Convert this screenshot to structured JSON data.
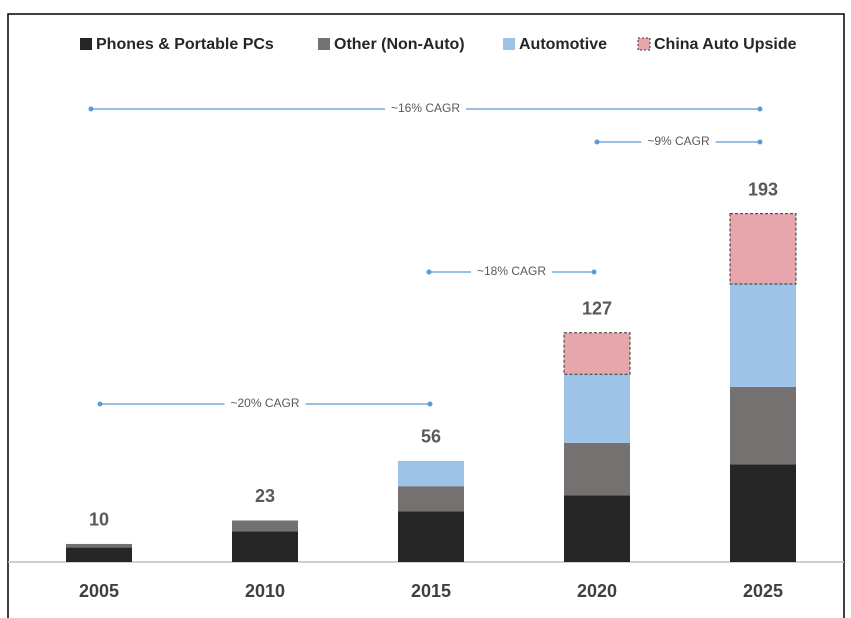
{
  "chart_data": {
    "type": "stacked-bar",
    "categories": [
      "2005",
      "2010",
      "2015",
      "2020",
      "2025"
    ],
    "series": [
      {
        "name": "Phones & Portable PCs",
        "color": "#262626",
        "values": [
          8,
          17,
          28,
          37,
          54
        ]
      },
      {
        "name": "Other (Non-Auto)",
        "color": "#767171",
        "values": [
          2,
          6,
          14,
          29,
          43
        ]
      },
      {
        "name": "Automotive",
        "color": "#9dc3e6",
        "values": [
          0,
          0,
          14,
          38,
          57
        ]
      },
      {
        "name": "China Auto Upside",
        "color": "#e6a6ab",
        "values": [
          0,
          0,
          0,
          23,
          39
        ]
      }
    ],
    "totals": [
      10,
      23,
      56,
      127,
      193
    ],
    "annotations": [
      "~16% CAGR",
      "~9% CAGR",
      "~18% CAGR",
      "~20% CAGR"
    ],
    "ylim": [
      0,
      200
    ]
  }
}
